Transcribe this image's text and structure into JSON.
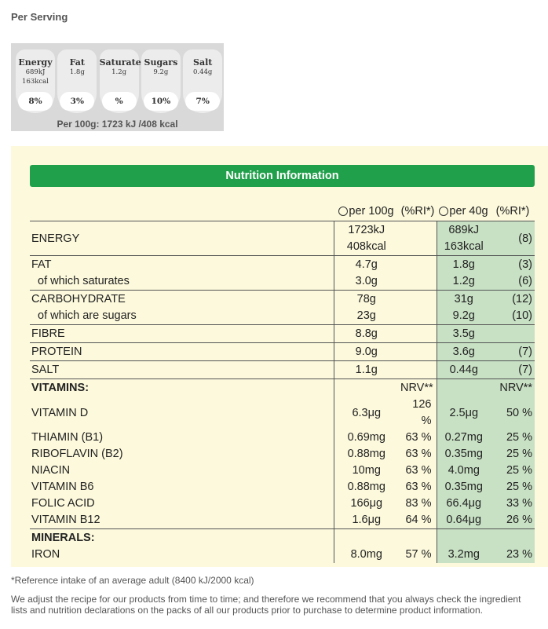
{
  "per_serving": {
    "title": "Per Serving",
    "items": [
      {
        "name": "Energy",
        "amounts": [
          "689kJ",
          "163kcal"
        ],
        "ri": "8%"
      },
      {
        "name": "Fat",
        "amounts": [
          "1.8g"
        ],
        "ri": "3%"
      },
      {
        "name": "Saturates",
        "amounts": [
          "1.2g"
        ],
        "ri": "%"
      },
      {
        "name": "Sugars",
        "amounts": [
          "9.2g"
        ],
        "ri": "10%"
      },
      {
        "name": "Salt",
        "amounts": [
          "0.44g"
        ],
        "ri": "7%"
      }
    ],
    "per_100g": "Per 100g: 1723 kJ /408 kcal"
  },
  "table": {
    "title": "Nutrition Information",
    "header": {
      "per_100g": "per 100g",
      "ri_100g": "(%RI*)",
      "per_40g": "per 40g",
      "ri_40g": "(%RI*)"
    },
    "groups": [
      {
        "rows": [
          {
            "label": "ENERGY",
            "per_100g": [
              "1723kJ",
              "408kcal"
            ],
            "per_40g": [
              "689kJ",
              "163kcal"
            ],
            "ri_40g": "(8)"
          }
        ]
      },
      {
        "rows": [
          {
            "label": "FAT",
            "per_100g": "4.7g",
            "per_40g": "1.8g",
            "ri_40g": "(3)"
          },
          {
            "label": "of which saturates",
            "indent": true,
            "per_100g": "3.0g",
            "per_40g": "1.2g",
            "ri_40g": "(6)"
          }
        ]
      },
      {
        "rows": [
          {
            "label": "CARBOHYDRATE",
            "per_100g": "78g",
            "per_40g": "31g",
            "ri_40g": "(12)"
          },
          {
            "label": "of which are sugars",
            "indent": true,
            "per_100g": "23g",
            "per_40g": "9.2g",
            "ri_40g": "(10)"
          }
        ]
      },
      {
        "rows": [
          {
            "label": "FIBRE",
            "per_100g": "8.8g",
            "per_40g": "3.5g"
          }
        ]
      },
      {
        "rows": [
          {
            "label": "PROTEIN",
            "per_100g": "9.0g",
            "per_40g": "3.6g",
            "ri_40g": "(7)"
          }
        ]
      },
      {
        "rows": [
          {
            "label": "SALT",
            "per_100g": "1.1g",
            "per_40g": "0.44g",
            "ri_40g": "(7)"
          }
        ]
      },
      {
        "rows": [
          {
            "label": "VITAMINS:",
            "heading": true,
            "ri_100g": "NRV**",
            "ri_40g": "NRV**"
          },
          {
            "label": "VITAMIN D",
            "per_100g": "6.3μg",
            "ri_100g": "126 %",
            "per_40g": "2.5μg",
            "ri_40g": "50 %"
          },
          {
            "label": "THIAMIN (B1)",
            "per_100g": "0.69mg",
            "ri_100g": "63 %",
            "per_40g": "0.27mg",
            "ri_40g": "25 %"
          },
          {
            "label": "RIBOFLAVIN (B2)",
            "per_100g": "0.88mg",
            "ri_100g": "63 %",
            "per_40g": "0.35mg",
            "ri_40g": "25 %"
          },
          {
            "label": "NIACIN",
            "per_100g": "10mg",
            "ri_100g": "63 %",
            "per_40g": "4.0mg",
            "ri_40g": "25 %"
          },
          {
            "label": "VITAMIN B6",
            "per_100g": "0.88mg",
            "ri_100g": "63 %",
            "per_40g": "0.35mg",
            "ri_40g": "25 %"
          },
          {
            "label": "FOLIC ACID",
            "per_100g": "166μg",
            "ri_100g": "83 %",
            "per_40g": "66.4μg",
            "ri_40g": "33 %"
          },
          {
            "label": "VITAMIN B12",
            "per_100g": "1.6μg",
            "ri_100g": "64 %",
            "per_40g": "0.64μg",
            "ri_40g": "26 %"
          }
        ]
      },
      {
        "rows": [
          {
            "label": "MINERALS:",
            "heading": true
          },
          {
            "label": "IRON",
            "per_100g": "8.0mg",
            "ri_100g": "57 %",
            "per_40g": "3.2mg",
            "ri_40g": "23 %"
          }
        ]
      }
    ]
  },
  "notes": [
    "*Reference intake of an average adult (8400 kJ/2000 kcal)",
    "We adjust the recipe for our products from time to time; and therefore we recommend that you always check the ingredient lists and nutrition declarations on the packs of all our products prior to purchase to determine product information."
  ]
}
